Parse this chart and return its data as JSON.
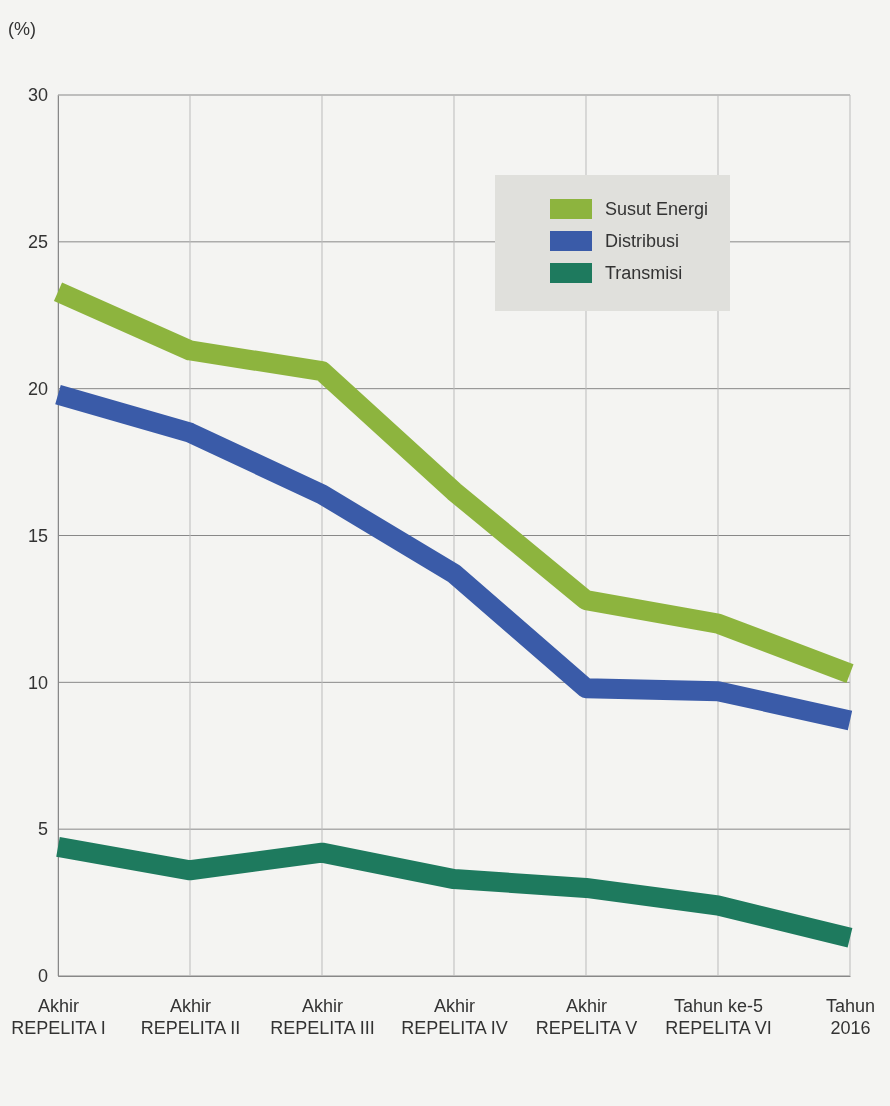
{
  "chart_data": {
    "type": "line",
    "ylabel": "(%)",
    "categories": [
      "Akhir\nREPELITA I",
      "Akhir\nREPELITA II",
      "Akhir\nREPELITA III",
      "Akhir\nREPELITA IV",
      "Akhir\nREPELITA V",
      "Tahun ke-5\nREPELITA VI",
      "Tahun\n2016"
    ],
    "series": [
      {
        "name": "Susut Energi",
        "color": "#8db43e",
        "values": [
          23.3,
          21.3,
          20.6,
          16.5,
          12.8,
          12.0,
          10.3
        ]
      },
      {
        "name": "Distribusi",
        "color": "#3a5ba8",
        "values": [
          19.8,
          18.5,
          16.4,
          13.7,
          9.8,
          9.7,
          8.7
        ]
      },
      {
        "name": "Transmisi",
        "color": "#1e7a5e",
        "values": [
          4.4,
          3.6,
          4.2,
          3.3,
          3.0,
          2.4,
          1.3
        ]
      }
    ],
    "ylim": [
      0,
      30
    ],
    "yticks": [
      0,
      5,
      10,
      15,
      20,
      25,
      30
    ],
    "grid": true,
    "legend": "top right",
    "marker": "none",
    "line_style": "solid"
  }
}
